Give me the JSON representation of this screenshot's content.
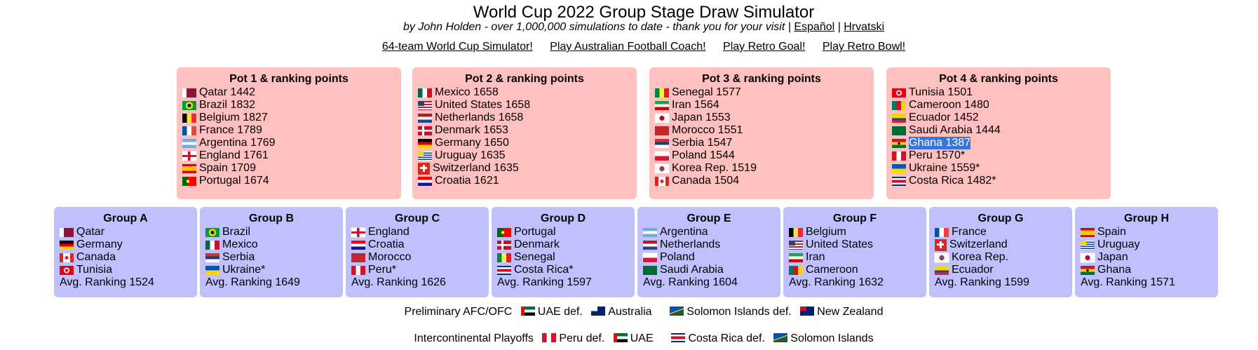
{
  "header": {
    "title": "World Cup 2022 Group Stage Draw Simulator",
    "subtitle": "by John Holden - over 1,000,000 simulations to date - thank you for your visit |",
    "languages": [
      "Español",
      "Hrvatski"
    ],
    "separator": "|"
  },
  "nav_links": [
    "64-team World Cup Simulator!",
    "Play Australian Football Coach!",
    "Play Retro Goal!",
    "Play Retro Bowl!"
  ],
  "pots": [
    {
      "title": "Pot 1 & ranking points",
      "teams": [
        "Qatar 1442",
        "Brazil 1832",
        "Belgium 1827",
        "France 1789",
        "Argentina 1769",
        "England 1761",
        "Spain 1709",
        "Portugal 1674"
      ]
    },
    {
      "title": "Pot 2 & ranking points",
      "teams": [
        "Mexico 1658",
        "United States 1658",
        "Netherlands 1658",
        "Denmark 1653",
        "Germany 1650",
        "Uruguay 1635",
        "Switzerland 1635",
        "Croatia 1621"
      ]
    },
    {
      "title": "Pot 3 & ranking points",
      "teams": [
        "Senegal 1577",
        "Iran 1564",
        "Japan 1553",
        "Morocco 1551",
        "Serbia 1547",
        "Poland 1544",
        "Korea Rep. 1519",
        "Canada 1504"
      ]
    },
    {
      "title": "Pot 4 & ranking points",
      "teams": [
        "Tunisia 1501",
        "Cameroon 1480",
        "Ecuador 1452",
        "Saudi Arabia 1444",
        "Ghana 1387",
        "Peru 1570*",
        "Ukraine 1559*",
        "Costa Rica 1482*"
      ]
    }
  ],
  "groups": [
    {
      "title": "Group A",
      "teams": [
        "Qatar",
        "Germany",
        "Canada",
        "Tunisia"
      ],
      "average": "Avg. Ranking 1524"
    },
    {
      "title": "Group B",
      "teams": [
        "Brazil",
        "Mexico",
        "Serbia",
        "Ukraine*"
      ],
      "average": "Avg. Ranking 1649"
    },
    {
      "title": "Group C",
      "teams": [
        "England",
        "Croatia",
        "Morocco",
        "Peru*"
      ],
      "average": "Avg. Ranking 1626"
    },
    {
      "title": "Group D",
      "teams": [
        "Portugal",
        "Denmark",
        "Senegal",
        "Costa Rica*"
      ],
      "average": "Avg. Ranking 1597"
    },
    {
      "title": "Group E",
      "teams": [
        "Argentina",
        "Netherlands",
        "Poland",
        "Saudi Arabia"
      ],
      "average": "Avg. Ranking 1604"
    },
    {
      "title": "Group F",
      "teams": [
        "Belgium",
        "United States",
        "Iran",
        "Cameroon"
      ],
      "average": "Avg. Ranking 1632"
    },
    {
      "title": "Group G",
      "teams": [
        "France",
        "Switzerland",
        "Korea Rep.",
        "Ecuador"
      ],
      "average": "Avg. Ranking 1599"
    },
    {
      "title": "Group H",
      "teams": [
        "Spain",
        "Uruguay",
        "Japan",
        "Ghana"
      ],
      "average": "Avg. Ranking 1571"
    }
  ],
  "playoffs": [
    {
      "label": "Preliminary AFC/OFC",
      "matches": [
        {
          "winner": "UAE",
          "verb": "def.",
          "loser": "Australia"
        },
        {
          "winner": "Solomon Islands",
          "verb": "def.",
          "loser": "New Zealand"
        }
      ]
    },
    {
      "label": "Intercontinental Playoffs",
      "matches": [
        {
          "winner": "Peru",
          "verb": "def.",
          "loser": "UAE"
        },
        {
          "winner": "Costa Rica",
          "verb": "def.",
          "loser": "Solomon Islands"
        }
      ]
    }
  ]
}
